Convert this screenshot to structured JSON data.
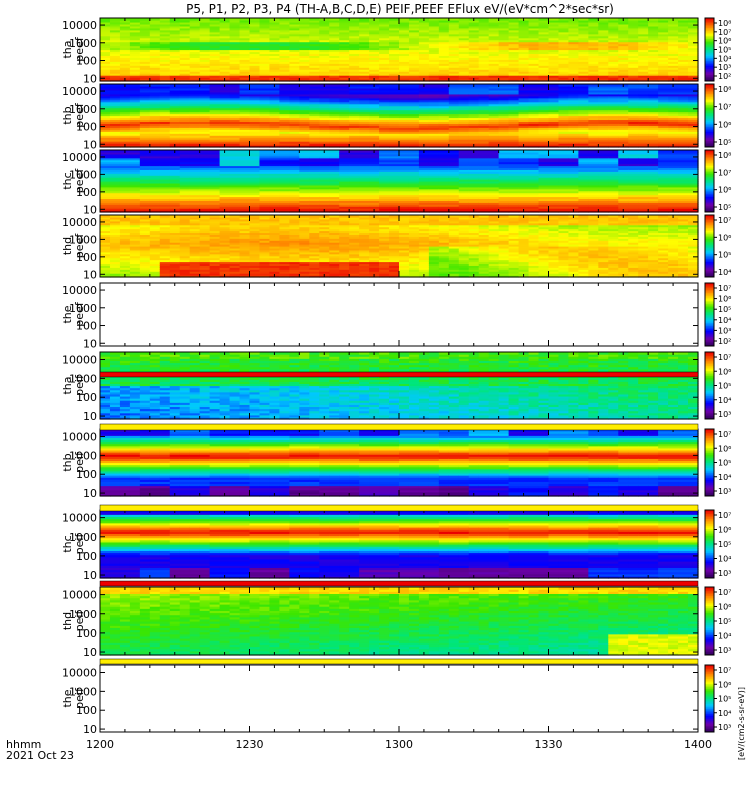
{
  "chart_data": {
    "type": "heatmap",
    "title": "P5, P1, P2, P3, P4 (TH-A,B,C,D,E) PEIF,PEEF EFlux eV/(eV*cm^2*sec*sr)",
    "xlabel": "hhmm",
    "date_label": "2021 Oct 23",
    "x_ticks": [
      "1200",
      "1230",
      "1300",
      "1330",
      "1400"
    ],
    "x_range": [
      "12:00",
      "14:00"
    ],
    "y_scale": "log",
    "y_ticks": [
      "10",
      "100",
      "1000",
      "10000"
    ],
    "y_range": [
      7,
      25000
    ],
    "colorscale": "rainbow (purple-blue-cyan-green-yellow-red)",
    "colorbar_label": "[eV/(cm2-s-sr-eV)]",
    "panels": [
      {
        "ylabel": [
          "tha",
          "peef"
        ],
        "cb_ticks": [
          "10²",
          "10³",
          "10⁴",
          "10⁵",
          "10⁶",
          "10⁷",
          "10⁸"
        ],
        "profile": "electron-a"
      },
      {
        "ylabel": [
          "thb",
          "peef"
        ],
        "cb_ticks": [
          "10⁵",
          "10⁶",
          "10⁷",
          "10⁸"
        ],
        "profile": "electron-b"
      },
      {
        "ylabel": [
          "thc",
          "peef"
        ],
        "cb_ticks": [
          "10⁵",
          "10⁶",
          "10⁷",
          "10⁸"
        ],
        "profile": "electron-c"
      },
      {
        "ylabel": [
          "thd",
          "peef"
        ],
        "cb_ticks": [
          "10⁴",
          "10⁵",
          "10⁶",
          "10⁷"
        ],
        "profile": "electron-d"
      },
      {
        "ylabel": [
          "the",
          "peef"
        ],
        "cb_ticks": [
          "10²",
          "10³",
          "10⁴",
          "10⁵",
          "10⁶",
          "10⁷"
        ],
        "profile": "empty"
      },
      {
        "ylabel": [
          "tha",
          "peif"
        ],
        "cb_ticks": [
          "10³",
          "10⁴",
          "10⁵",
          "10⁶",
          "10⁷"
        ],
        "profile": "ion-a"
      },
      {
        "ylabel": [
          "thb",
          "peif"
        ],
        "cb_ticks": [
          "10³",
          "10⁴",
          "10⁵",
          "10⁶",
          "10⁷"
        ],
        "profile": "ion-b"
      },
      {
        "ylabel": [
          "thc",
          "peif"
        ],
        "cb_ticks": [
          "10³",
          "10⁴",
          "10⁵",
          "10⁶",
          "10⁷"
        ],
        "profile": "ion-c"
      },
      {
        "ylabel": [
          "thd",
          "peif"
        ],
        "cb_ticks": [
          "10³",
          "10⁴",
          "10⁵",
          "10⁶",
          "10⁷"
        ],
        "profile": "ion-d"
      },
      {
        "ylabel": [
          "the",
          "peif"
        ],
        "cb_ticks": [
          "10³",
          "10⁴",
          "10⁵",
          "10⁶",
          "10⁷"
        ],
        "profile": "empty"
      }
    ]
  }
}
